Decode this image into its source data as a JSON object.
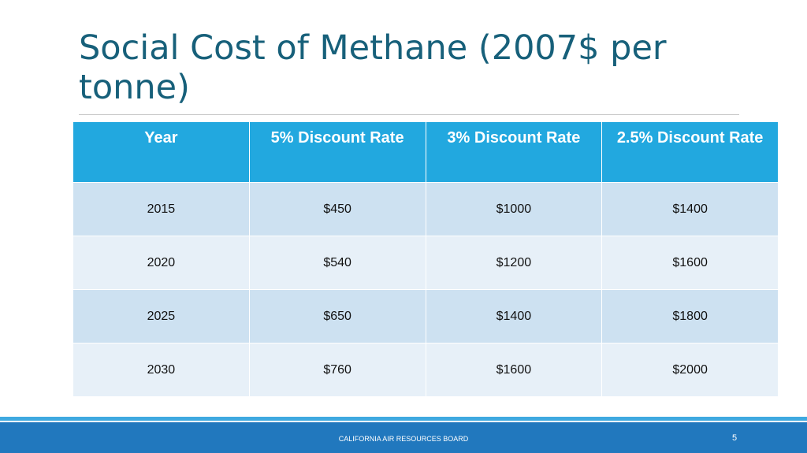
{
  "slide": {
    "title": "Social Cost of Methane (2007$ per tonne)",
    "footer_text": "CALIFORNIA AIR RESOURCES BOARD",
    "page_number": "5"
  },
  "table": {
    "headers": [
      "Year",
      "5% Discount Rate",
      "3% Discount Rate",
      "2.5% Discount Rate"
    ],
    "rows": [
      [
        "2015",
        "$450",
        "$1000",
        "$1400"
      ],
      [
        "2020",
        "$540",
        "$1200",
        "$1600"
      ],
      [
        "2025",
        "$650",
        "$1400",
        "$1800"
      ],
      [
        "2030",
        "$760",
        "$1600",
        "$2000"
      ]
    ]
  },
  "colors": {
    "title": "#17607a",
    "header_fill": "#22a8df",
    "row_fill_dark": "#cde1f1",
    "row_fill_light": "#e7f0f8",
    "footer_bar": "#2178be",
    "footer_accent_line": "#3fa9e0"
  }
}
